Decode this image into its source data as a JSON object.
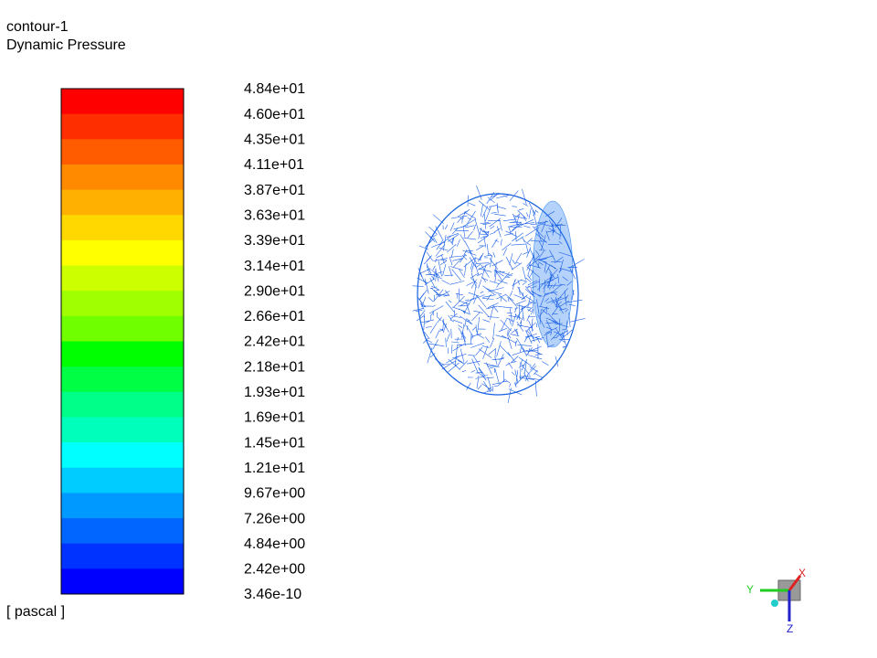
{
  "header": {
    "title": "contour-1",
    "subtitle": "Dynamic Pressure"
  },
  "colorbar": {
    "labels": [
      "4.84e+01",
      "4.60e+01",
      "4.35e+01",
      "4.11e+01",
      "3.87e+01",
      "3.63e+01",
      "3.39e+01",
      "3.14e+01",
      "2.90e+01",
      "2.66e+01",
      "2.42e+01",
      "2.18e+01",
      "1.93e+01",
      "1.69e+01",
      "1.45e+01",
      "1.21e+01",
      "9.67e+00",
      "7.26e+00",
      "4.84e+00",
      "2.42e+00",
      "3.46e-10"
    ],
    "colors": [
      "#ff0000",
      "#ff2e00",
      "#ff5c00",
      "#ff8a00",
      "#ffb000",
      "#ffd800",
      "#ffff00",
      "#ccff00",
      "#a0ff00",
      "#70ff00",
      "#00ff00",
      "#00ff44",
      "#00ff88",
      "#00ffbb",
      "#00ffff",
      "#00ccff",
      "#0099ff",
      "#0066ff",
      "#0033ff",
      "#0000ff"
    ],
    "unit": "[ pascal ]"
  },
  "triad": {
    "x": "X",
    "y": "Y",
    "z": "Z"
  }
}
